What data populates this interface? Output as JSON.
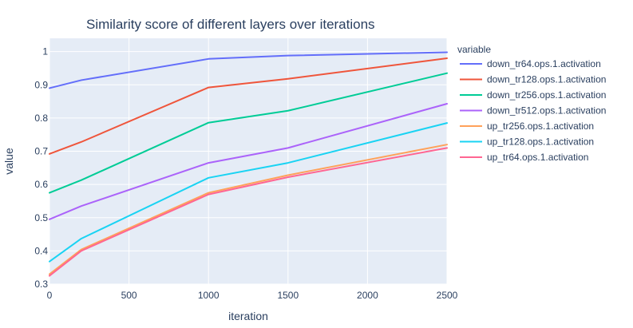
{
  "chart_data": {
    "type": "line",
    "title": "Similarity score of different layers over iterations",
    "xlabel": "iteration",
    "ylabel": "value",
    "xlim": [
      0,
      2500
    ],
    "ylim": [
      0.3,
      1.04
    ],
    "x_ticks": [
      0,
      500,
      1000,
      1500,
      2000,
      2500
    ],
    "y_ticks": [
      0.3,
      0.4,
      0.5,
      0.6,
      0.7,
      0.8,
      0.9,
      1
    ],
    "x_tick_labels": [
      "0",
      "500",
      "1000",
      "1500",
      "2000",
      "2500"
    ],
    "y_tick_labels": [
      "0.3",
      "0.4",
      "0.5",
      "0.6",
      "0.7",
      "0.8",
      "0.9",
      "1"
    ],
    "grid": true,
    "plot_background": "#e5ecf6",
    "legend_title": "variable",
    "legend_position": "right",
    "x": [
      0,
      200,
      1000,
      1500,
      2500
    ],
    "series": [
      {
        "name": "down_tr64.ops.1.activation",
        "color": "#636efa",
        "values": [
          0.89,
          0.914,
          0.978,
          0.988,
          0.998
        ]
      },
      {
        "name": "down_tr128.ops.1.activation",
        "color": "#ef553b",
        "values": [
          0.692,
          0.728,
          0.892,
          0.918,
          0.98
        ]
      },
      {
        "name": "down_tr256.ops.1.activation",
        "color": "#00cc96",
        "values": [
          0.575,
          0.613,
          0.786,
          0.822,
          0.935
        ]
      },
      {
        "name": "down_tr512.ops.1.activation",
        "color": "#ab63fa",
        "values": [
          0.495,
          0.535,
          0.665,
          0.71,
          0.843
        ]
      },
      {
        "name": "up_tr256.ops.1.activation",
        "color": "#ffa15a",
        "values": [
          0.33,
          0.404,
          0.575,
          0.628,
          0.72
        ]
      },
      {
        "name": "up_tr128.ops.1.activation",
        "color": "#19d3f3",
        "values": [
          0.368,
          0.437,
          0.62,
          0.665,
          0.785
        ]
      },
      {
        "name": "up_tr64.ops.1.activation",
        "color": "#ff6692",
        "values": [
          0.325,
          0.4,
          0.57,
          0.622,
          0.71
        ]
      }
    ]
  }
}
